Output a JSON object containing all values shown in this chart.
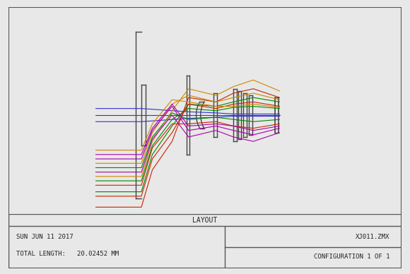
{
  "title": "LAYOUT",
  "footer_left_line1": "SUN JUN 11 2017",
  "footer_left_line2": "TOTAL LENGTH:   20.02452 MM",
  "footer_right_line1": "XJ011.ZMX",
  "footer_right_line2": "CONFIGURATION 1 OF 1",
  "bg_color": "#e8e8e8",
  "plot_bg": "#f0f0f0",
  "border_color": "#555555",
  "ray_colors": [
    "#0000cc",
    "#0000cc",
    "#0000cc",
    "#00aa00",
    "#00aa00",
    "#00aa00",
    "#cc0000",
    "#cc0000",
    "#cc0000",
    "#cc8800",
    "#cc8800",
    "#cc8800",
    "#aa00aa",
    "#aa00aa",
    "#aa00aa"
  ],
  "lens_color": "#444444"
}
